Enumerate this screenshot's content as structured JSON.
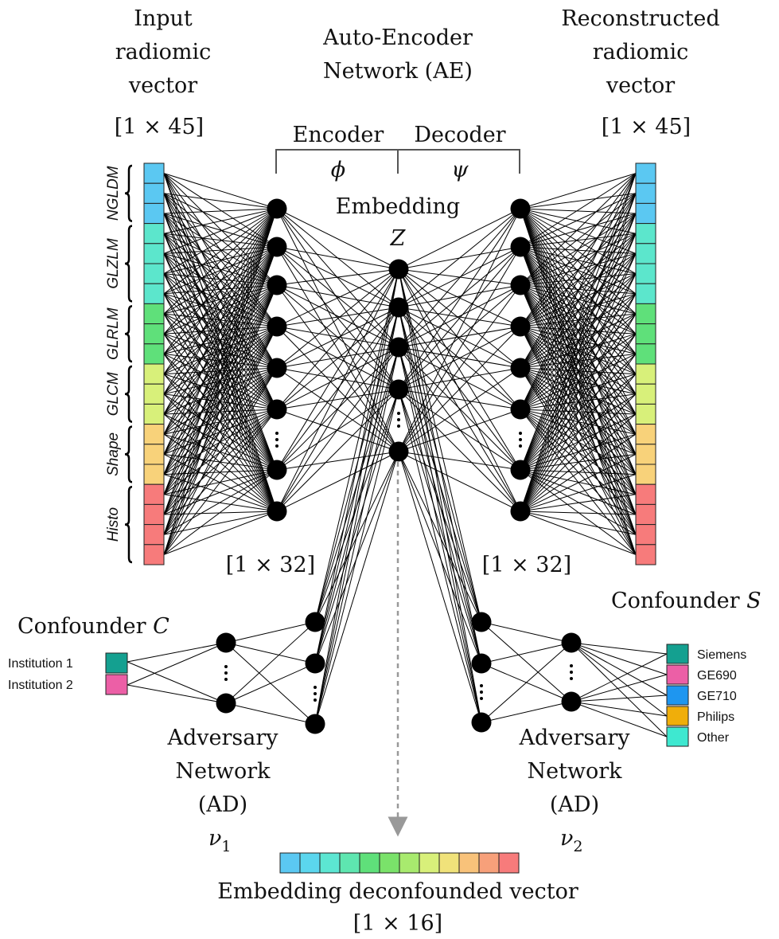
{
  "title": "Auto-Encoder Network (AE)",
  "input": {
    "label_lines": [
      "Input",
      "radiomic",
      "vector"
    ],
    "dim": "[1 × 45]",
    "groups": [
      {
        "name": "NGLDM",
        "color": "#5bc8f2",
        "count": 3
      },
      {
        "name": "GLZLM",
        "color": "#5ce6cc",
        "count": 4
      },
      {
        "name": "GLRLM",
        "color": "#5fe07a",
        "count": 3
      },
      {
        "name": "GLCM",
        "color": "#d8f07a",
        "count": 3
      },
      {
        "name": "Shape",
        "color": "#f8d27a",
        "count": 3
      },
      {
        "name": "Histo",
        "color": "#f77b7b",
        "count": 4
      }
    ],
    "ellipsis": "⋮"
  },
  "output": {
    "label_lines": [
      "Reconstructed",
      "radiomic",
      "vector"
    ],
    "dim": "[1 × 45]",
    "ellipsis": "⋮"
  },
  "encoder": {
    "label": "Encoder",
    "symbol": "ϕ",
    "dim": "[1 × 32]"
  },
  "decoder": {
    "label": "Decoder",
    "symbol": "ψ",
    "dim": "[1 × 32]"
  },
  "embedding": {
    "label": "Embedding",
    "symbol": "Z"
  },
  "adversary_left": {
    "confounder": "Confounder",
    "confounder_symbol": "C",
    "categories": [
      {
        "name": "Institution 1",
        "color": "#14a090"
      },
      {
        "name": "Institution 2",
        "color": "#ec5fa6"
      }
    ],
    "label_lines": [
      "Adversary",
      "Network",
      "(AD)"
    ],
    "symbol": "ν",
    "subscript": "1"
  },
  "adversary_right": {
    "confounder": "Confounder",
    "confounder_symbol": "S",
    "categories": [
      {
        "name": "Siemens",
        "color": "#14a090"
      },
      {
        "name": "GE690",
        "color": "#ec5fa6"
      },
      {
        "name": "GE710",
        "color": "#1e96f0"
      },
      {
        "name": "Philips",
        "color": "#f0ae0a"
      },
      {
        "name": "Other",
        "color": "#3ee8d0"
      }
    ],
    "label_lines": [
      "Adversary",
      "Network",
      "(AD)"
    ],
    "symbol": "ν",
    "subscript": "2"
  },
  "output_vector": {
    "label": "Embedding deconfounded vector",
    "dim": "[1 × 16]",
    "colors": [
      "#5bc8f2",
      "#5bd6ee",
      "#5ce6d2",
      "#5ee6b0",
      "#5fe07a",
      "#7ae26a",
      "#a8ea6e",
      "#d8f07a",
      "#f0e27a",
      "#f8c27a",
      "#f7a07a",
      "#f77b7b"
    ]
  }
}
